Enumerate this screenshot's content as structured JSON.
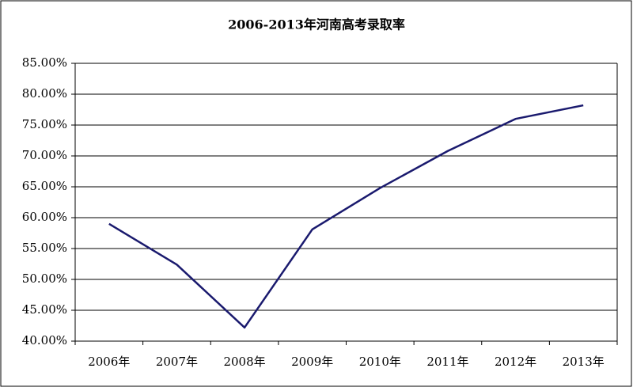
{
  "chart_data": {
    "type": "line",
    "title": "2006-2013年河南高考录取率",
    "categories": [
      "2006年",
      "2007年",
      "2008年",
      "2009年",
      "2010年",
      "2011年",
      "2012年",
      "2013年"
    ],
    "series": [
      {
        "name": "录取率",
        "color": "#1a1a6e",
        "values": [
          59.0,
          52.4,
          42.2,
          58.1,
          64.8,
          70.8,
          76.0,
          78.2
        ]
      }
    ],
    "ylim": [
      40,
      85
    ],
    "yticks": [
      {
        "value": 40,
        "label": "40.00%"
      },
      {
        "value": 45,
        "label": "45.00%"
      },
      {
        "value": 50,
        "label": "50.00%"
      },
      {
        "value": 55,
        "label": "55.00%"
      },
      {
        "value": 60,
        "label": "60.00%"
      },
      {
        "value": 65,
        "label": "65.00%"
      },
      {
        "value": 70,
        "label": "70.00%"
      },
      {
        "value": 75,
        "label": "75.00%"
      },
      {
        "value": 80,
        "label": "80.00%"
      },
      {
        "value": 85,
        "label": "85.00%"
      }
    ],
    "grid": true
  }
}
